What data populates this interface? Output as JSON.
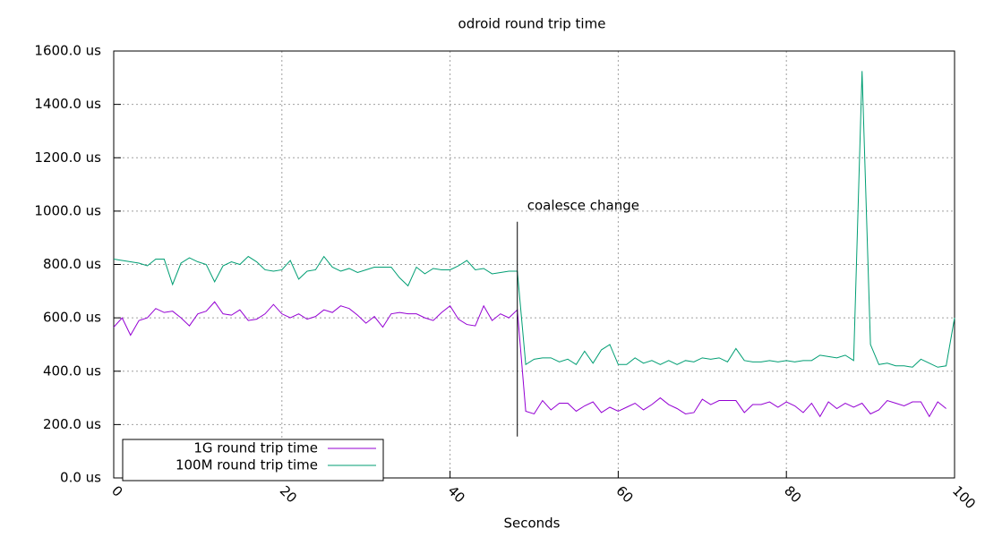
{
  "chart_data": {
    "type": "line",
    "title": "odroid round trip time",
    "x_label": "Seconds",
    "xlim": [
      0,
      100
    ],
    "xticks": [
      0,
      20,
      40,
      60,
      80,
      100
    ],
    "ylim": [
      0,
      1600
    ],
    "yticks": [
      {
        "value": 0,
        "label": "0.0 us"
      },
      {
        "value": 200,
        "label": "200.0 us"
      },
      {
        "value": 400,
        "label": "400.0 us"
      },
      {
        "value": 600,
        "label": "600.0 us"
      },
      {
        "value": 800,
        "label": "800.0 us"
      },
      {
        "value": 1000,
        "label": "1000.0 us"
      },
      {
        "value": 1200,
        "label": "1200.0 us"
      },
      {
        "value": 1400,
        "label": "1400.0 us"
      },
      {
        "value": 1600,
        "label": "1600.0 us"
      }
    ],
    "grid": true,
    "legend": "bottom-left",
    "series": [
      {
        "name": "1G round trip time",
        "color": "#9400d3",
        "values": [
          565,
          600,
          535,
          590,
          600,
          635,
          620,
          625,
          600,
          570,
          615,
          625,
          660,
          615,
          610,
          630,
          590,
          595,
          615,
          650,
          615,
          600,
          615,
          595,
          605,
          630,
          620,
          645,
          635,
          610,
          580,
          605,
          565,
          615,
          620,
          615,
          615,
          600,
          590,
          620,
          645,
          595,
          575,
          570,
          645,
          590,
          615,
          600,
          630,
          250,
          240,
          290,
          255,
          280,
          280,
          250,
          270,
          285,
          245,
          265,
          250,
          265,
          280,
          255,
          275,
          300,
          275,
          260,
          240,
          245,
          295,
          275,
          290,
          290,
          290,
          245,
          275,
          275,
          285,
          265,
          285,
          270,
          245,
          280,
          230,
          285,
          260,
          280,
          265,
          280,
          240,
          255,
          290,
          280,
          270,
          285,
          285,
          230,
          285,
          260
        ]
      },
      {
        "name": "100M round trip time",
        "color": "#009e73",
        "values": [
          820,
          815,
          810,
          805,
          795,
          820,
          820,
          725,
          805,
          825,
          810,
          800,
          735,
          795,
          810,
          800,
          830,
          810,
          780,
          775,
          780,
          815,
          745,
          775,
          780,
          830,
          790,
          775,
          785,
          770,
          780,
          790,
          790,
          790,
          750,
          720,
          790,
          765,
          785,
          780,
          780,
          795,
          815,
          780,
          785,
          765,
          770,
          775,
          775,
          425,
          445,
          450,
          450,
          435,
          445,
          425,
          475,
          430,
          480,
          500,
          425,
          425,
          450,
          430,
          440,
          425,
          440,
          425,
          440,
          435,
          450,
          445,
          450,
          435,
          485,
          440,
          435,
          435,
          440,
          435,
          440,
          435,
          440,
          440,
          460,
          455,
          450,
          460,
          440,
          1525,
          500,
          425,
          430,
          420,
          420,
          415,
          445,
          430,
          415,
          420,
          600
        ]
      }
    ],
    "annotations": [
      {
        "text": "coalesce change",
        "x": 48,
        "y1": 155,
        "y2": 960
      }
    ]
  }
}
